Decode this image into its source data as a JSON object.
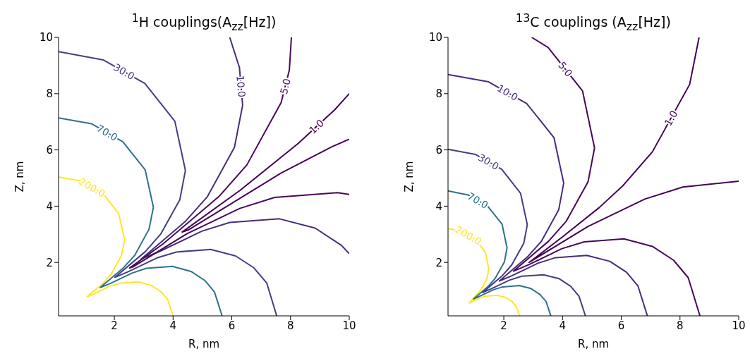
{
  "chart_data": [
    {
      "type": "line",
      "title": "$^{1}$H couplings(A$_{zz}$[Hz])",
      "xlabel": "R, nm",
      "ylabel": "Z, nm",
      "xlim": [
        0.1,
        10
      ],
      "ylim": [
        0.1,
        10
      ],
      "xticks": [
        2,
        4,
        6,
        8,
        10
      ],
      "yticks": [
        2,
        4,
        6,
        8,
        10
      ],
      "series": [
        {
          "name": "200.0",
          "color": "#fde725",
          "x": [
            0.1,
            0.86,
            1.62,
            2.15,
            2.35,
            2.24,
            1.9,
            1.63,
            1.07,
            1.31,
            1.83,
            2.18,
            2.81,
            3.25,
            3.59,
            3.82,
            4.0
          ],
          "values": [
            5.04,
            4.89,
            4.44,
            3.73,
            2.8,
            2.24,
            1.6,
            1.27,
            0.78,
            0.88,
            1.15,
            1.26,
            1.31,
            1.18,
            0.96,
            0.67,
            0.1
          ]
        },
        {
          "name": "70.0",
          "color": "#2c728e",
          "x": [
            0.1,
            1.22,
            2.29,
            3.05,
            3.33,
            3.18,
            2.7,
            2.3,
            1.52,
            1.86,
            2.6,
            3.09,
            3.98,
            4.61,
            5.08,
            5.41,
            5.67
          ],
          "values": [
            7.14,
            6.93,
            6.29,
            5.29,
            3.96,
            3.18,
            2.26,
            1.8,
            1.11,
            1.25,
            1.62,
            1.79,
            1.86,
            1.68,
            1.36,
            0.95,
            0.1
          ]
        },
        {
          "name": "30.0",
          "color": "#433e85",
          "x": [
            0.1,
            1.62,
            3.04,
            4.06,
            4.42,
            4.23,
            3.58,
            3.06,
            2.02,
            2.47,
            3.45,
            4.11,
            5.28,
            6.13,
            6.75,
            7.19,
            7.53
          ],
          "values": [
            9.49,
            9.2,
            8.36,
            7.02,
            5.27,
            4.23,
            3.01,
            2.39,
            1.47,
            1.67,
            2.16,
            2.37,
            2.46,
            2.23,
            1.81,
            1.27,
            0.1
          ]
        },
        {
          "name": "10.0",
          "color": "#472c7a",
          "x": [
            5.93,
            6.26,
            6.37,
            6.09,
            5.17,
            4.41,
            2.91,
            3.56,
            4.98,
            5.93,
            7.62,
            8.84,
            9.73,
            10.0
          ],
          "values": [
            10.0,
            8.93,
            7.59,
            6.09,
            4.34,
            3.45,
            2.12,
            2.4,
            3.11,
            3.42,
            3.55,
            3.22,
            2.61,
            2.31
          ]
        },
        {
          "name": "5.0",
          "color": "#46085c",
          "x": [
            8.03,
            7.96,
            7.68,
            6.51,
            5.56,
            3.67,
            2.52,
            2.63,
            4.49,
            6.27,
            7.46,
            9.6,
            10.0
          ],
          "values": [
            10.0,
            8.84,
            7.68,
            5.46,
            4.34,
            2.67,
            1.8,
            1.84,
            3.03,
            3.92,
            4.31,
            4.48,
            4.42
          ]
        },
        {
          "name": "1.0",
          "color": "#440154",
          "x": [
            10.0,
            9.51,
            8.26,
            6.28,
            4.31,
            4.51,
            7.67,
            9.41,
            10.0
          ],
          "values": [
            8.0,
            7.43,
            6.23,
            4.56,
            3.08,
            3.15,
            5.17,
            6.11,
            6.38
          ]
        }
      ]
    },
    {
      "type": "line",
      "title": "$^{13}$C couplings (A$_{zz}$[Hz])",
      "xlabel": "R, nm",
      "ylabel": "Z, nm",
      "xlim": [
        0.1,
        10
      ],
      "ylim": [
        0.1,
        10
      ],
      "xticks": [
        2,
        4,
        6,
        8,
        10
      ],
      "yticks": [
        2,
        4,
        6,
        8,
        10
      ],
      "series": [
        {
          "name": "200.0",
          "color": "#fde725",
          "x": [
            0.1,
            0.55,
            1.03,
            1.37,
            1.49,
            1.43,
            1.21,
            1.03,
            0.83,
            1.16,
            1.39,
            1.78,
            2.07,
            2.28,
            2.42,
            2.54
          ],
          "values": [
            3.2,
            3.1,
            2.82,
            2.37,
            1.78,
            1.43,
            1.01,
            0.81,
            0.56,
            0.73,
            0.8,
            0.83,
            0.75,
            0.61,
            0.43,
            0.1
          ]
        },
        {
          "name": "70.0",
          "color": "#2c728e",
          "x": [
            0.1,
            0.78,
            1.45,
            1.94,
            2.11,
            2.02,
            1.71,
            1.46,
            0.97,
            1.18,
            1.65,
            1.96,
            2.53,
            2.93,
            3.23,
            3.44,
            3.6
          ],
          "values": [
            4.54,
            4.4,
            4.0,
            3.36,
            2.52,
            2.02,
            1.44,
            1.14,
            0.7,
            0.8,
            1.03,
            1.13,
            1.18,
            1.07,
            0.86,
            0.61,
            0.1
          ]
        },
        {
          "name": "30.0",
          "color": "#433e85",
          "x": [
            0.1,
            1.03,
            1.93,
            2.57,
            2.8,
            2.68,
            2.27,
            1.94,
            1.28,
            1.57,
            2.19,
            2.61,
            3.35,
            3.89,
            4.28,
            4.56,
            4.78
          ],
          "values": [
            6.02,
            5.84,
            5.31,
            4.46,
            3.34,
            2.68,
            1.91,
            1.52,
            0.93,
            1.06,
            1.37,
            1.51,
            1.56,
            1.42,
            1.15,
            0.8,
            0.1
          ]
        },
        {
          "name": "10.0",
          "color": "#472c7a",
          "x": [
            0.1,
            1.48,
            2.78,
            3.71,
            4.04,
            3.87,
            3.28,
            2.8,
            1.85,
            2.26,
            3.16,
            3.76,
            4.83,
            5.61,
            6.18,
            6.57,
            6.89
          ],
          "values": [
            8.68,
            8.42,
            7.65,
            6.43,
            4.82,
            3.87,
            2.75,
            2.19,
            1.34,
            1.52,
            1.97,
            2.17,
            2.25,
            2.04,
            1.65,
            1.16,
            0.1
          ]
        },
        {
          "name": "5.0",
          "color": "#46085c",
          "x": [
            2.95,
            3.51,
            4.68,
            5.09,
            4.87,
            4.13,
            3.53,
            2.33,
            2.85,
            3.98,
            4.74,
            6.09,
            7.06,
            7.78,
            8.28,
            8.68
          ],
          "values": [
            10.0,
            9.64,
            8.1,
            6.07,
            4.87,
            3.47,
            2.76,
            1.69,
            1.92,
            2.49,
            2.73,
            2.84,
            2.57,
            2.08,
            1.46,
            0.1
          ]
        },
        {
          "name": "1.0",
          "color": "#440154",
          "x": [
            8.65,
            8.33,
            7.06,
            6.04,
            5.25,
            3.99,
            2.86,
            4.87,
            6.8,
            8.1,
            10.0
          ],
          "values": [
            10.0,
            8.33,
            5.93,
            4.71,
            3.95,
            2.9,
            2.0,
            3.28,
            4.25,
            4.68,
            4.89
          ]
        }
      ]
    }
  ]
}
